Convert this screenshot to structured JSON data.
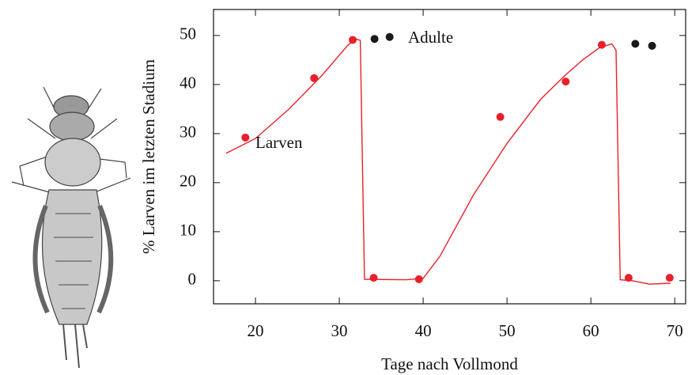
{
  "chart_data": {
    "type": "scatter",
    "xlabel": "Tage nach Vollmond",
    "ylabel": "% Larven im letzten Stadium",
    "xlim": [
      15,
      71.3
    ],
    "ylim": [
      -4.7,
      55.3
    ],
    "xticks": [
      20,
      30,
      40,
      50,
      60,
      70
    ],
    "yticks": [
      0,
      10,
      20,
      30,
      40,
      50
    ],
    "series": [
      {
        "name": "Larven",
        "color": "#e8202a",
        "x": [
          18.8,
          27,
          31.6,
          34.1,
          39.5,
          49.2,
          57,
          61.3,
          64.5,
          69.4
        ],
        "values": [
          29.2,
          41.3,
          49.1,
          0.6,
          0.3,
          33.4,
          40.6,
          48.1,
          0.6,
          0.6
        ]
      },
      {
        "name": "Adulte",
        "color": "#1a1a1a",
        "x": [
          34.2,
          36,
          65.3,
          67.3
        ],
        "values": [
          49.3,
          49.7,
          48.3,
          47.9
        ]
      }
    ],
    "line": {
      "color": "#e8202a",
      "x": [
        16.5,
        20,
        24,
        28,
        30,
        31,
        32,
        32.5,
        33,
        38,
        40,
        42,
        46,
        50,
        54,
        57,
        59,
        61,
        62.5,
        63,
        63.5,
        65,
        67,
        69.5
      ],
      "values": [
        26,
        29,
        35,
        42,
        46,
        48,
        49.3,
        49,
        0.3,
        0.2,
        0.5,
        5,
        17.5,
        28,
        37,
        42,
        45,
        47.5,
        48.3,
        47,
        0.2,
        0,
        -0.7,
        -0.5
      ]
    }
  }
}
